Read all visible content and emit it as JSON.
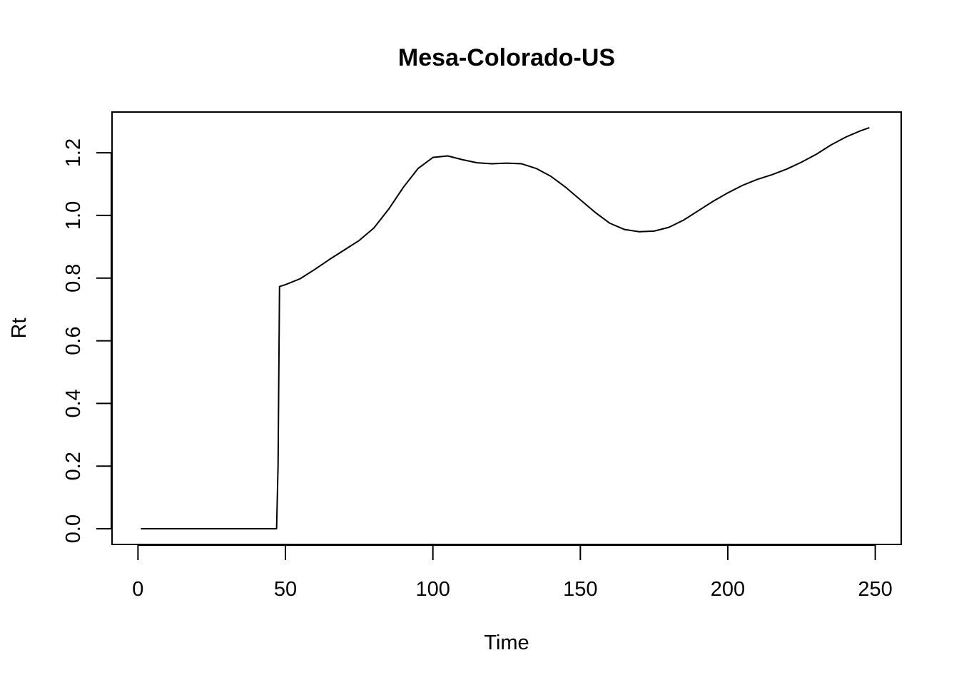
{
  "chart_data": {
    "type": "line",
    "title": "Mesa-Colorado-US",
    "xlabel": "Time",
    "ylabel": "Rt",
    "xlim": [
      -8.8,
      258.8
    ],
    "ylim": [
      -0.05,
      1.33
    ],
    "xticks": [
      0,
      50,
      100,
      150,
      200,
      250
    ],
    "yticks": [
      0.0,
      0.2,
      0.4,
      0.6,
      0.8,
      1.0,
      1.2
    ],
    "xtick_labels": [
      "0",
      "50",
      "100",
      "150",
      "200",
      "250"
    ],
    "ytick_labels": [
      "0.0",
      "0.2",
      "0.4",
      "0.6",
      "0.8",
      "1.0",
      "1.2"
    ],
    "grid": false,
    "line_color": "#000000",
    "series": [
      {
        "x": [
          1,
          10,
          20,
          30,
          40,
          47,
          47.5,
          48,
          50,
          55,
          60,
          65,
          70,
          75,
          80,
          85,
          90,
          95,
          100,
          105,
          110,
          115,
          120,
          125,
          130,
          135,
          140,
          145,
          150,
          155,
          160,
          165,
          170,
          175,
          180,
          185,
          190,
          195,
          200,
          205,
          210,
          215,
          220,
          225,
          230,
          235,
          240,
          245,
          248
        ],
        "values": [
          0,
          0,
          0,
          0,
          0,
          0,
          0.2,
          0.773,
          0.779,
          0.798,
          0.828,
          0.86,
          0.89,
          0.92,
          0.96,
          1.02,
          1.09,
          1.15,
          1.185,
          1.19,
          1.178,
          1.168,
          1.165,
          1.167,
          1.165,
          1.15,
          1.125,
          1.09,
          1.05,
          1.01,
          0.975,
          0.955,
          0.948,
          0.95,
          0.962,
          0.985,
          1.015,
          1.045,
          1.072,
          1.096,
          1.115,
          1.13,
          1.148,
          1.17,
          1.195,
          1.225,
          1.25,
          1.27,
          1.28
        ]
      }
    ]
  }
}
